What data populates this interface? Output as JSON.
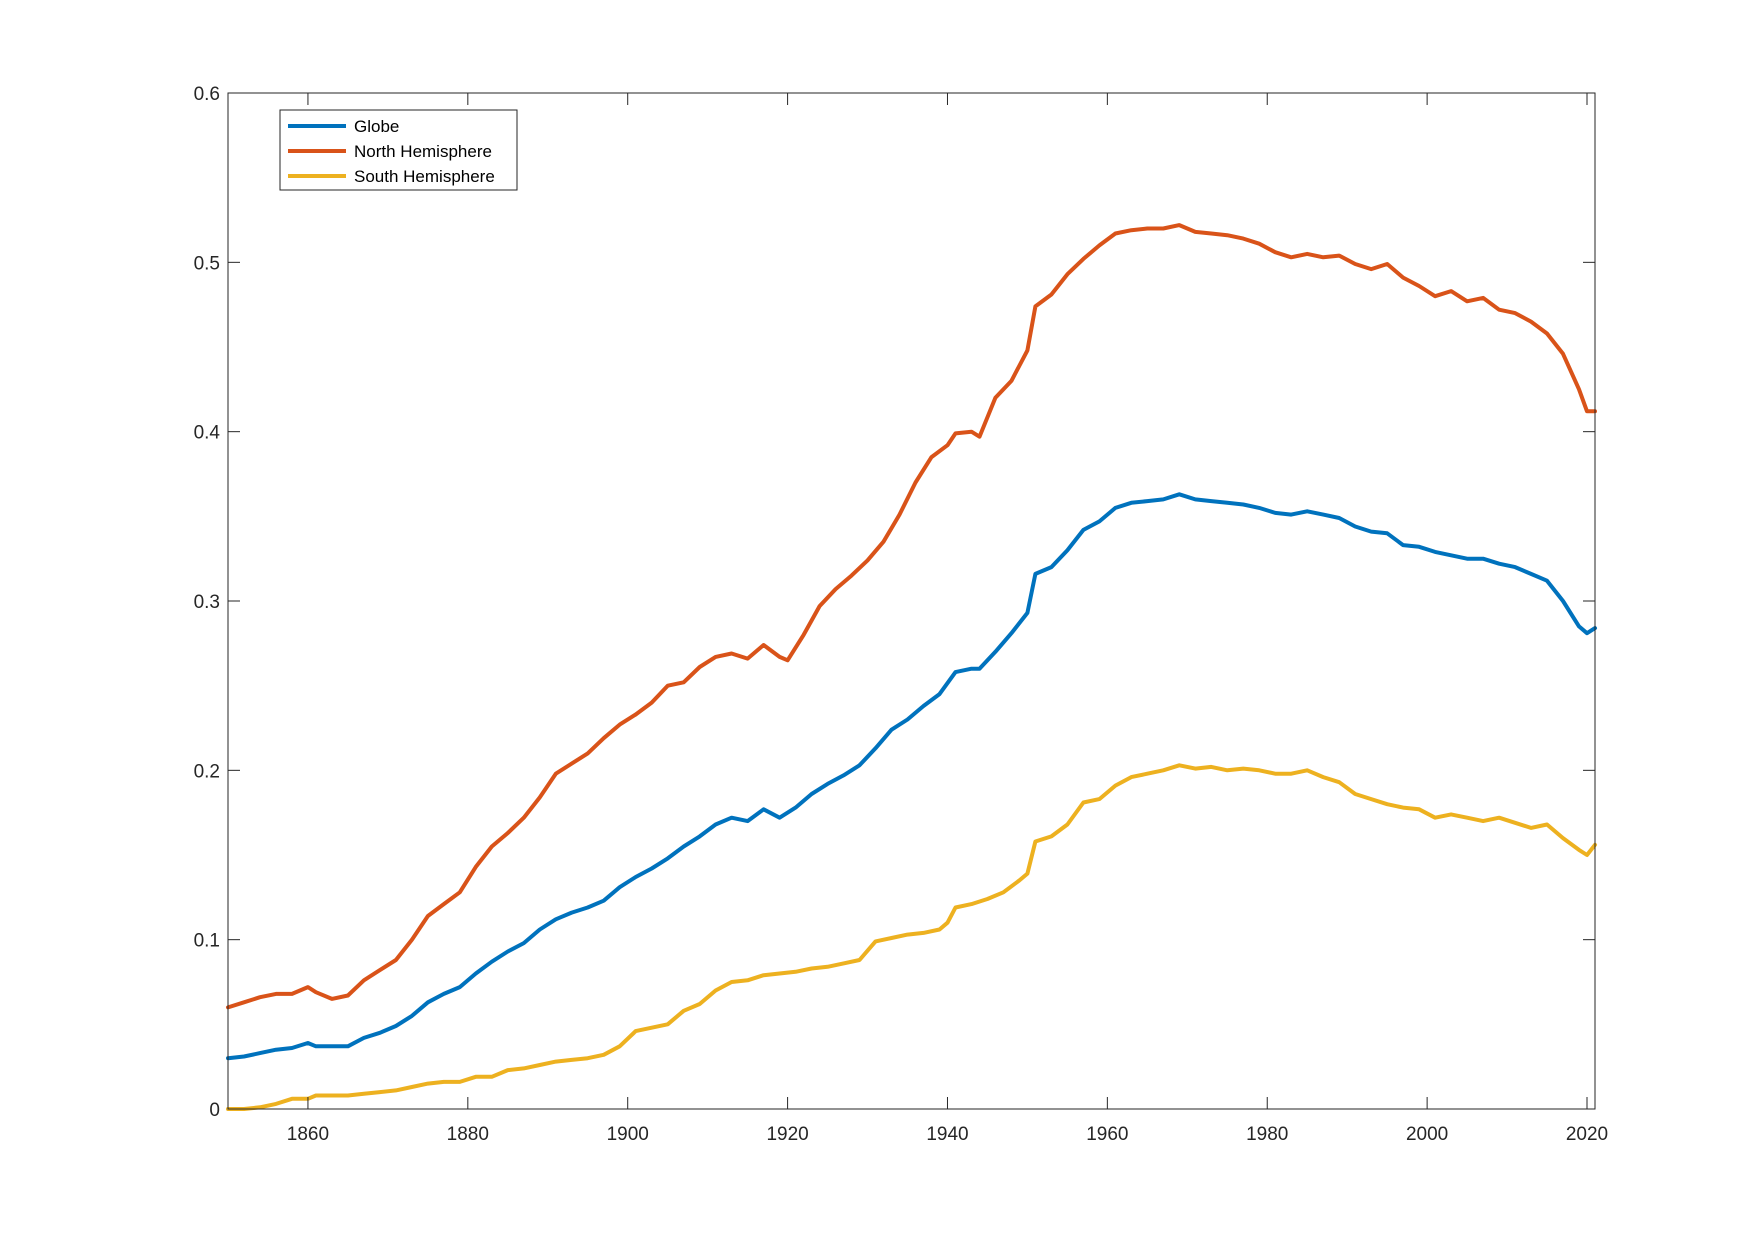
{
  "chart_data": {
    "type": "line",
    "xlim": [
      1850,
      2021
    ],
    "ylim": [
      0,
      0.6
    ],
    "xticks": [
      1860,
      1880,
      1900,
      1920,
      1940,
      1960,
      1980,
      2000,
      2020
    ],
    "yticks": [
      0,
      0.1,
      0.2,
      0.3,
      0.4,
      0.5,
      0.6
    ],
    "xtick_labels": [
      "1860",
      "1880",
      "1900",
      "1920",
      "1940",
      "1960",
      "1980",
      "2000",
      "2020"
    ],
    "ytick_labels": [
      "0",
      "0.1",
      "0.2",
      "0.3",
      "0.4",
      "0.5",
      "0.6"
    ],
    "grid": false,
    "box": true,
    "legend_position": "top-left",
    "series": [
      {
        "name": "Globe",
        "color": "#0072BD",
        "points": [
          [
            1850,
            0.03
          ],
          [
            1852,
            0.031
          ],
          [
            1854,
            0.033
          ],
          [
            1856,
            0.035
          ],
          [
            1858,
            0.036
          ],
          [
            1860,
            0.039
          ],
          [
            1861,
            0.037
          ],
          [
            1863,
            0.037
          ],
          [
            1865,
            0.037
          ],
          [
            1867,
            0.042
          ],
          [
            1869,
            0.045
          ],
          [
            1871,
            0.049
          ],
          [
            1873,
            0.055
          ],
          [
            1875,
            0.063
          ],
          [
            1877,
            0.068
          ],
          [
            1879,
            0.072
          ],
          [
            1881,
            0.08
          ],
          [
            1883,
            0.087
          ],
          [
            1885,
            0.093
          ],
          [
            1887,
            0.098
          ],
          [
            1889,
            0.106
          ],
          [
            1891,
            0.112
          ],
          [
            1893,
            0.116
          ],
          [
            1895,
            0.119
          ],
          [
            1897,
            0.123
          ],
          [
            1899,
            0.131
          ],
          [
            1901,
            0.137
          ],
          [
            1903,
            0.142
          ],
          [
            1905,
            0.148
          ],
          [
            1907,
            0.155
          ],
          [
            1909,
            0.161
          ],
          [
            1911,
            0.168
          ],
          [
            1913,
            0.172
          ],
          [
            1915,
            0.17
          ],
          [
            1917,
            0.177
          ],
          [
            1919,
            0.172
          ],
          [
            1921,
            0.178
          ],
          [
            1923,
            0.186
          ],
          [
            1925,
            0.192
          ],
          [
            1927,
            0.197
          ],
          [
            1929,
            0.203
          ],
          [
            1931,
            0.213
          ],
          [
            1933,
            0.224
          ],
          [
            1935,
            0.23
          ],
          [
            1937,
            0.238
          ],
          [
            1939,
            0.245
          ],
          [
            1941,
            0.258
          ],
          [
            1943,
            0.26
          ],
          [
            1944,
            0.26
          ],
          [
            1946,
            0.27
          ],
          [
            1948,
            0.281
          ],
          [
            1950,
            0.293
          ],
          [
            1951,
            0.316
          ],
          [
            1953,
            0.32
          ],
          [
            1955,
            0.33
          ],
          [
            1957,
            0.342
          ],
          [
            1959,
            0.347
          ],
          [
            1961,
            0.355
          ],
          [
            1963,
            0.358
          ],
          [
            1965,
            0.359
          ],
          [
            1967,
            0.36
          ],
          [
            1969,
            0.363
          ],
          [
            1971,
            0.36
          ],
          [
            1973,
            0.359
          ],
          [
            1975,
            0.358
          ],
          [
            1977,
            0.357
          ],
          [
            1979,
            0.355
          ],
          [
            1981,
            0.352
          ],
          [
            1983,
            0.351
          ],
          [
            1985,
            0.353
          ],
          [
            1987,
            0.351
          ],
          [
            1989,
            0.349
          ],
          [
            1991,
            0.344
          ],
          [
            1993,
            0.341
          ],
          [
            1995,
            0.34
          ],
          [
            1997,
            0.333
          ],
          [
            1999,
            0.332
          ],
          [
            2001,
            0.329
          ],
          [
            2003,
            0.327
          ],
          [
            2005,
            0.325
          ],
          [
            2007,
            0.325
          ],
          [
            2009,
            0.322
          ],
          [
            2011,
            0.32
          ],
          [
            2013,
            0.316
          ],
          [
            2015,
            0.312
          ],
          [
            2017,
            0.3
          ],
          [
            2019,
            0.285
          ],
          [
            2020,
            0.281
          ],
          [
            2021,
            0.284
          ]
        ]
      },
      {
        "name": "North Hemisphere",
        "color": "#D95319",
        "points": [
          [
            1850,
            0.06
          ],
          [
            1852,
            0.063
          ],
          [
            1854,
            0.066
          ],
          [
            1856,
            0.068
          ],
          [
            1858,
            0.068
          ],
          [
            1860,
            0.072
          ],
          [
            1861,
            0.069
          ],
          [
            1863,
            0.065
          ],
          [
            1865,
            0.067
          ],
          [
            1867,
            0.076
          ],
          [
            1869,
            0.082
          ],
          [
            1871,
            0.088
          ],
          [
            1873,
            0.1
          ],
          [
            1875,
            0.114
          ],
          [
            1877,
            0.121
          ],
          [
            1879,
            0.128
          ],
          [
            1881,
            0.143
          ],
          [
            1883,
            0.155
          ],
          [
            1885,
            0.163
          ],
          [
            1887,
            0.172
          ],
          [
            1889,
            0.184
          ],
          [
            1891,
            0.198
          ],
          [
            1893,
            0.204
          ],
          [
            1895,
            0.21
          ],
          [
            1897,
            0.219
          ],
          [
            1899,
            0.227
          ],
          [
            1901,
            0.233
          ],
          [
            1903,
            0.24
          ],
          [
            1905,
            0.25
          ],
          [
            1907,
            0.252
          ],
          [
            1909,
            0.261
          ],
          [
            1911,
            0.267
          ],
          [
            1913,
            0.269
          ],
          [
            1915,
            0.266
          ],
          [
            1917,
            0.274
          ],
          [
            1919,
            0.267
          ],
          [
            1920,
            0.265
          ],
          [
            1922,
            0.28
          ],
          [
            1924,
            0.297
          ],
          [
            1926,
            0.307
          ],
          [
            1928,
            0.315
          ],
          [
            1930,
            0.324
          ],
          [
            1932,
            0.335
          ],
          [
            1934,
            0.351
          ],
          [
            1936,
            0.37
          ],
          [
            1938,
            0.385
          ],
          [
            1940,
            0.392
          ],
          [
            1941,
            0.399
          ],
          [
            1943,
            0.4
          ],
          [
            1944,
            0.397
          ],
          [
            1946,
            0.42
          ],
          [
            1948,
            0.43
          ],
          [
            1950,
            0.448
          ],
          [
            1951,
            0.474
          ],
          [
            1953,
            0.481
          ],
          [
            1955,
            0.493
          ],
          [
            1957,
            0.502
          ],
          [
            1959,
            0.51
          ],
          [
            1961,
            0.517
          ],
          [
            1963,
            0.519
          ],
          [
            1965,
            0.52
          ],
          [
            1967,
            0.52
          ],
          [
            1969,
            0.522
          ],
          [
            1971,
            0.518
          ],
          [
            1973,
            0.517
          ],
          [
            1975,
            0.516
          ],
          [
            1977,
            0.514
          ],
          [
            1979,
            0.511
          ],
          [
            1981,
            0.506
          ],
          [
            1983,
            0.503
          ],
          [
            1985,
            0.505
          ],
          [
            1987,
            0.503
          ],
          [
            1989,
            0.504
          ],
          [
            1991,
            0.499
          ],
          [
            1993,
            0.496
          ],
          [
            1995,
            0.499
          ],
          [
            1997,
            0.491
          ],
          [
            1999,
            0.486
          ],
          [
            2001,
            0.48
          ],
          [
            2003,
            0.483
          ],
          [
            2005,
            0.477
          ],
          [
            2007,
            0.479
          ],
          [
            2009,
            0.472
          ],
          [
            2011,
            0.47
          ],
          [
            2013,
            0.465
          ],
          [
            2015,
            0.458
          ],
          [
            2017,
            0.446
          ],
          [
            2019,
            0.425
          ],
          [
            2020,
            0.412
          ],
          [
            2021,
            0.412
          ]
        ]
      },
      {
        "name": "South Hemisphere",
        "color": "#EDB120",
        "points": [
          [
            1850,
            0.0
          ],
          [
            1852,
            0.0
          ],
          [
            1854,
            0.001
          ],
          [
            1856,
            0.003
          ],
          [
            1858,
            0.006
          ],
          [
            1860,
            0.006
          ],
          [
            1861,
            0.008
          ],
          [
            1863,
            0.008
          ],
          [
            1865,
            0.008
          ],
          [
            1867,
            0.009
          ],
          [
            1869,
            0.01
          ],
          [
            1871,
            0.011
          ],
          [
            1873,
            0.013
          ],
          [
            1875,
            0.015
          ],
          [
            1877,
            0.016
          ],
          [
            1879,
            0.016
          ],
          [
            1881,
            0.019
          ],
          [
            1883,
            0.019
          ],
          [
            1885,
            0.023
          ],
          [
            1887,
            0.024
          ],
          [
            1889,
            0.026
          ],
          [
            1891,
            0.028
          ],
          [
            1893,
            0.029
          ],
          [
            1895,
            0.03
          ],
          [
            1897,
            0.032
          ],
          [
            1899,
            0.037
          ],
          [
            1901,
            0.046
          ],
          [
            1903,
            0.048
          ],
          [
            1905,
            0.05
          ],
          [
            1907,
            0.058
          ],
          [
            1909,
            0.062
          ],
          [
            1911,
            0.07
          ],
          [
            1913,
            0.075
          ],
          [
            1915,
            0.076
          ],
          [
            1917,
            0.079
          ],
          [
            1919,
            0.08
          ],
          [
            1921,
            0.081
          ],
          [
            1923,
            0.083
          ],
          [
            1925,
            0.084
          ],
          [
            1927,
            0.086
          ],
          [
            1929,
            0.088
          ],
          [
            1931,
            0.099
          ],
          [
            1933,
            0.101
          ],
          [
            1935,
            0.103
          ],
          [
            1937,
            0.104
          ],
          [
            1939,
            0.106
          ],
          [
            1940,
            0.11
          ],
          [
            1941,
            0.119
          ],
          [
            1943,
            0.121
          ],
          [
            1945,
            0.124
          ],
          [
            1947,
            0.128
          ],
          [
            1949,
            0.135
          ],
          [
            1950,
            0.139
          ],
          [
            1951,
            0.158
          ],
          [
            1953,
            0.161
          ],
          [
            1955,
            0.168
          ],
          [
            1957,
            0.181
          ],
          [
            1959,
            0.183
          ],
          [
            1961,
            0.191
          ],
          [
            1963,
            0.196
          ],
          [
            1965,
            0.198
          ],
          [
            1967,
            0.2
          ],
          [
            1969,
            0.203
          ],
          [
            1971,
            0.201
          ],
          [
            1973,
            0.202
          ],
          [
            1975,
            0.2
          ],
          [
            1977,
            0.201
          ],
          [
            1979,
            0.2
          ],
          [
            1981,
            0.198
          ],
          [
            1983,
            0.198
          ],
          [
            1985,
            0.2
          ],
          [
            1987,
            0.196
          ],
          [
            1989,
            0.193
          ],
          [
            1991,
            0.186
          ],
          [
            1993,
            0.183
          ],
          [
            1995,
            0.18
          ],
          [
            1997,
            0.178
          ],
          [
            1999,
            0.177
          ],
          [
            2001,
            0.172
          ],
          [
            2003,
            0.174
          ],
          [
            2005,
            0.172
          ],
          [
            2007,
            0.17
          ],
          [
            2009,
            0.172
          ],
          [
            2011,
            0.169
          ],
          [
            2013,
            0.166
          ],
          [
            2015,
            0.168
          ],
          [
            2017,
            0.16
          ],
          [
            2019,
            0.153
          ],
          [
            2020,
            0.15
          ],
          [
            2021,
            0.156
          ]
        ]
      }
    ]
  }
}
